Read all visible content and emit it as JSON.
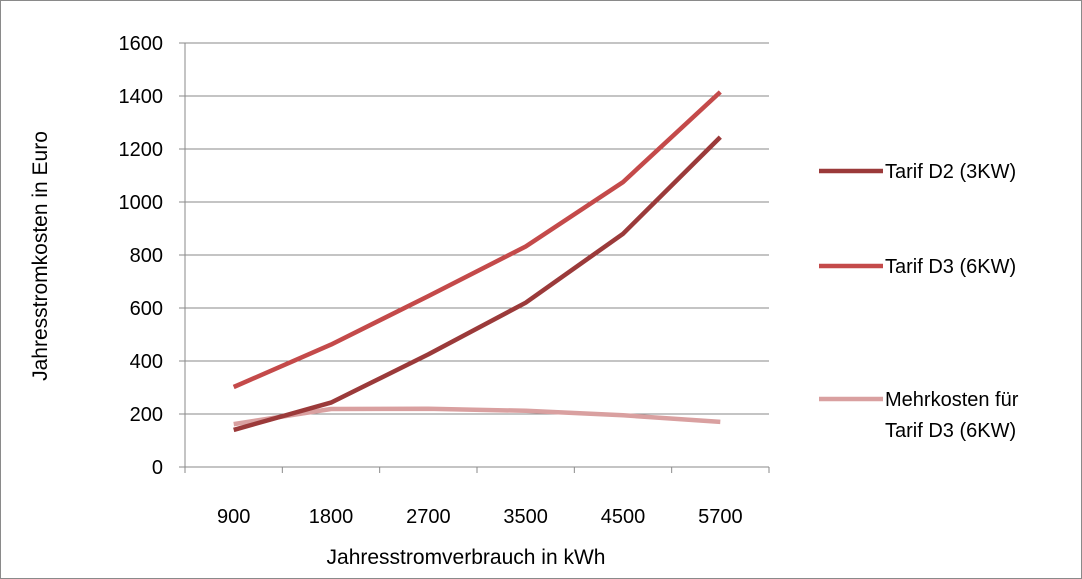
{
  "chart_data": {
    "type": "line",
    "title": "",
    "xlabel": "Jahresstromverbrauch in kWh",
    "ylabel": "Jahresstromkosten in Euro",
    "categories": [
      "900",
      "1800",
      "2700",
      "3500",
      "4500",
      "5700"
    ],
    "ylim": [
      0,
      1600
    ],
    "yticks": [
      0,
      200,
      400,
      600,
      800,
      1000,
      1200,
      1400,
      1600
    ],
    "grid": true,
    "legend_position": "right",
    "series": [
      {
        "name": "Tarif D2 (3KW)",
        "color": "#9b3a3a",
        "values": [
          140,
          243,
          425,
          620,
          880,
          1245
        ]
      },
      {
        "name": "Tarif D3 (6KW)",
        "color": "#c44a4a",
        "values": [
          302,
          462,
          645,
          832,
          1075,
          1415
        ]
      },
      {
        "name": "Mehrkosten für Tarif D3 (6KW)",
        "color": "#d9a0a0",
        "values": [
          162,
          219,
          220,
          212,
          195,
          170
        ]
      }
    ]
  }
}
